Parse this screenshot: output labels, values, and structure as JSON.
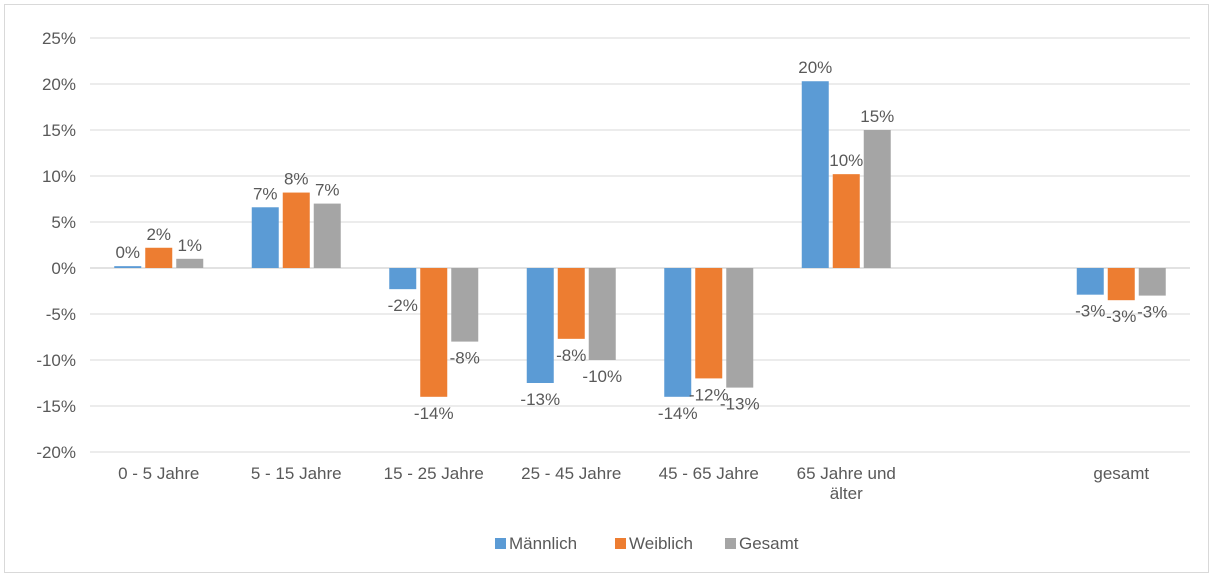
{
  "chart_data": {
    "type": "bar",
    "categories": [
      "0 - 5 Jahre",
      "5 - 15 Jahre",
      "15 - 25 Jahre",
      "25 - 45 Jahre",
      "45 - 65 Jahre",
      "65 Jahre und älter",
      null,
      "gesamt"
    ],
    "series": [
      {
        "name": "Männlich",
        "color": "#5b9bd5",
        "values": [
          0.2,
          6.6,
          -2.3,
          -12.5,
          -14,
          20.3,
          null,
          -2.9
        ],
        "value_labels": [
          "0%",
          "7%",
          "-2%",
          "-13%",
          "-14%",
          "20%",
          null,
          "-3%"
        ]
      },
      {
        "name": "Weiblich",
        "color": "#ed7d31",
        "values": [
          2.2,
          8.2,
          -14,
          -7.7,
          -12,
          10.2,
          null,
          -3.5
        ],
        "value_labels": [
          "2%",
          "8%",
          "-14%",
          "-8%",
          "-12%",
          "10%",
          null,
          "-3%"
        ]
      },
      {
        "name": "Gesamt",
        "color": "#a5a5a5",
        "values": [
          1.0,
          7.0,
          -8,
          -10,
          -13,
          15,
          null,
          -3
        ],
        "value_labels": [
          "1%",
          "7%",
          "-8%",
          "-10%",
          "-13%",
          "15%",
          null,
          "-3%"
        ]
      }
    ],
    "ylim": [
      -20,
      25
    ],
    "yticks": [
      {
        "value": -20,
        "label": "-20%"
      },
      {
        "value": -15,
        "label": "-15%"
      },
      {
        "value": -10,
        "label": "-10%"
      },
      {
        "value": -5,
        "label": "-5%"
      },
      {
        "value": 0,
        "label": "0%"
      },
      {
        "value": 5,
        "label": "5%"
      },
      {
        "value": 10,
        "label": "10%"
      },
      {
        "value": 15,
        "label": "15%"
      },
      {
        "value": 20,
        "label": "20%"
      },
      {
        "value": 25,
        "label": "25%"
      }
    ],
    "grid": true,
    "legend": "bottom"
  }
}
